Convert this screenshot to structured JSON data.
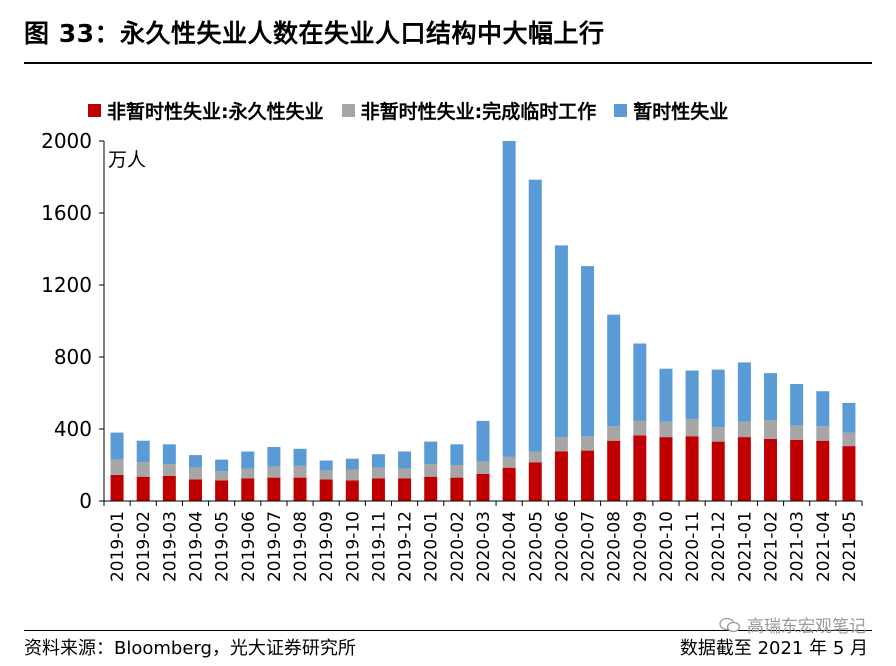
{
  "header": {
    "title": "图 33：永久性失业人数在失业人口结构中大幅上行"
  },
  "footer": {
    "source": "资料来源：Bloomberg，光大证券研究所",
    "date_note": "数据截至 2021 年 5 月",
    "watermark": "高瑞东宏观笔记"
  },
  "colors": {
    "permanent": "#C00000",
    "temporary_completed": "#A6A6A6",
    "temporary": "#5B9BD5"
  },
  "chart_data": {
    "type": "bar",
    "stacked": true,
    "unit_label": "万人",
    "ylim": [
      0,
      2000
    ],
    "yticks": [
      0,
      400,
      800,
      1200,
      1600,
      2000
    ],
    "categories": [
      "2019-01",
      "2019-02",
      "2019-03",
      "2019-04",
      "2019-05",
      "2019-06",
      "2019-07",
      "2019-08",
      "2019-09",
      "2019-10",
      "2019-11",
      "2019-12",
      "2020-01",
      "2020-02",
      "2020-03",
      "2020-04",
      "2020-05",
      "2020-06",
      "2020-07",
      "2020-08",
      "2020-09",
      "2020-10",
      "2020-11",
      "2020-12",
      "2021-01",
      "2021-02",
      "2021-03",
      "2021-04",
      "2021-05"
    ],
    "series": [
      {
        "name": "非暂时性失业:永久性失业",
        "values": [
          145,
          135,
          140,
          120,
          115,
          125,
          130,
          130,
          120,
          115,
          125,
          125,
          135,
          130,
          150,
          185,
          215,
          275,
          280,
          335,
          365,
          355,
          360,
          330,
          355,
          345,
          340,
          335,
          305
        ]
      },
      {
        "name": "非暂时性失业:完成临时工作",
        "values": [
          85,
          80,
          65,
          65,
          50,
          55,
          60,
          65,
          50,
          60,
          60,
          55,
          70,
          70,
          70,
          60,
          60,
          80,
          80,
          80,
          80,
          85,
          95,
          80,
          85,
          105,
          80,
          80,
          75
        ]
      },
      {
        "name": "暂时性失业",
        "values": [
          150,
          120,
          110,
          70,
          65,
          95,
          110,
          95,
          55,
          60,
          75,
          95,
          125,
          115,
          225,
          1755,
          1510,
          1065,
          945,
          620,
          430,
          295,
          270,
          320,
          330,
          260,
          230,
          195,
          165
        ]
      }
    ]
  }
}
